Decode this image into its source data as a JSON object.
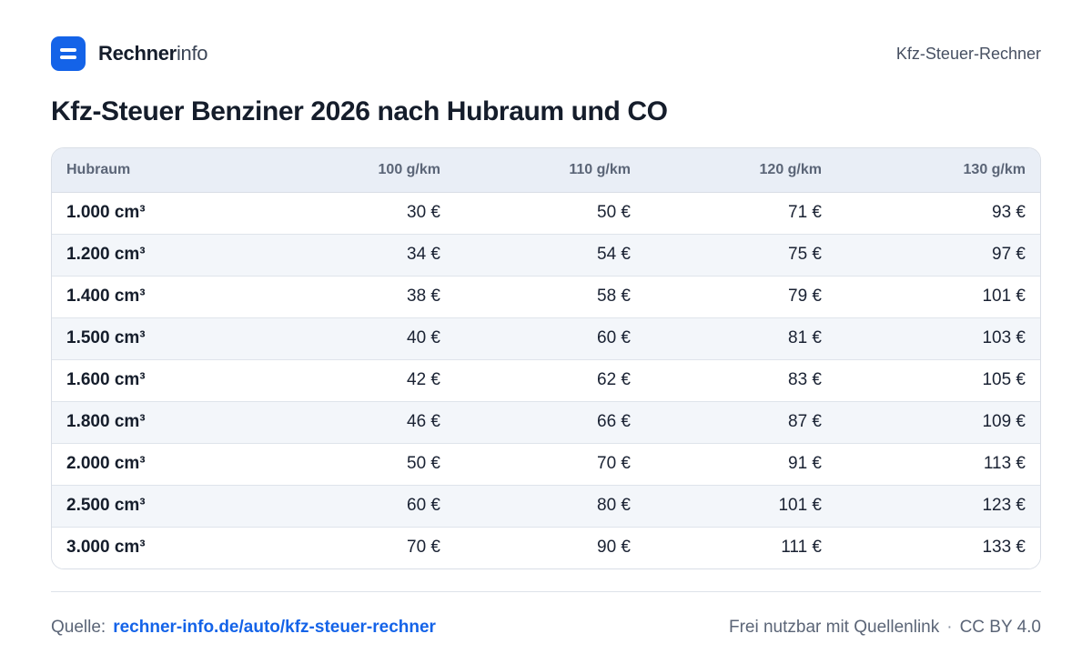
{
  "header": {
    "brand_strong": "Rechner",
    "brand_light": "info",
    "right_label": "Kfz-Steuer-Rechner",
    "logo_icon": "equals-icon",
    "accent_color": "#1463e8"
  },
  "title": "Kfz-Steuer Benziner 2026 nach Hubraum und CO",
  "table": {
    "headers": [
      "Hubraum",
      "100 g/km",
      "110 g/km",
      "120 g/km",
      "130 g/km"
    ],
    "rows": [
      [
        "1.000 cm³",
        "30 €",
        "50 €",
        "71 €",
        "93 €"
      ],
      [
        "1.200 cm³",
        "34 €",
        "54 €",
        "75 €",
        "97 €"
      ],
      [
        "1.400 cm³",
        "38 €",
        "58 €",
        "79 €",
        "101 €"
      ],
      [
        "1.500 cm³",
        "40 €",
        "60 €",
        "81 €",
        "103 €"
      ],
      [
        "1.600 cm³",
        "42 €",
        "62 €",
        "83 €",
        "105 €"
      ],
      [
        "1.800 cm³",
        "46 €",
        "66 €",
        "87 €",
        "109 €"
      ],
      [
        "2.000 cm³",
        "50 €",
        "70 €",
        "91 €",
        "113 €"
      ],
      [
        "2.500 cm³",
        "60 €",
        "80 €",
        "101 €",
        "123 €"
      ],
      [
        "3.000 cm³",
        "70 €",
        "90 €",
        "111 €",
        "133 €"
      ]
    ]
  },
  "footer": {
    "source_label": "Quelle:",
    "source_link": "rechner-info.de/auto/kfz-steuer-rechner",
    "license_text": "Frei nutzbar mit Quellenlink",
    "separator": "·",
    "license": "CC BY 4.0"
  }
}
